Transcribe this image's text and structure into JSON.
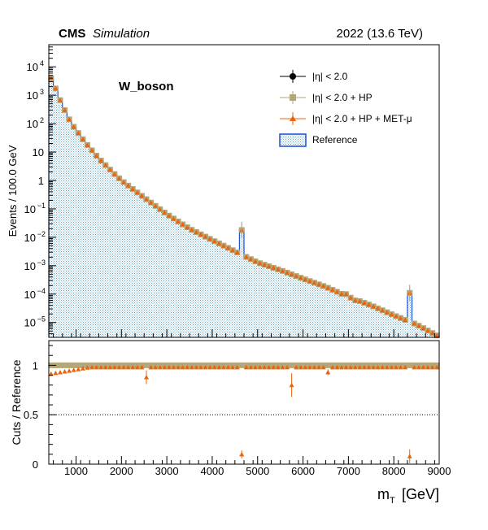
{
  "header": {
    "experiment": "CMS",
    "status": "Simulation",
    "lumi": "2022 (13.6 TeV)"
  },
  "chart_data": {
    "type": "bar",
    "process_label": "W_boson",
    "top_ylabel": "Events / 100.0 GeV",
    "ratio_ylabel": "Cuts / Reference",
    "xlabel": "m",
    "xlabel_sub": "T",
    "xlabel_unit": "[GeV]",
    "xlim": [
      400,
      9000
    ],
    "top_ylim": [
      3e-06,
      60000.0
    ],
    "top_yscale": "log",
    "ratio_ylim": [
      0,
      1.25
    ],
    "ratio_reference_lines": [
      1.0,
      0.5
    ],
    "x_ticks": [
      1000,
      2000,
      3000,
      4000,
      5000,
      6000,
      7000,
      8000,
      9000
    ],
    "x_tick_labels": [
      "1000",
      "2000",
      "3000",
      "4000",
      "5000",
      "6000",
      "7000",
      "8000",
      "9000"
    ],
    "top_y_tick_labels": [
      {
        "value": 10000,
        "base": "10",
        "exp": "4"
      },
      {
        "value": 1000,
        "base": "10",
        "exp": "3"
      },
      {
        "value": 100,
        "base": "10",
        "exp": "2"
      },
      {
        "value": 10,
        "base": "10",
        "exp": ""
      },
      {
        "value": 1,
        "base": "1",
        "exp": ""
      },
      {
        "value": 0.1,
        "base": "10",
        "exp": "−1"
      },
      {
        "value": 0.01,
        "base": "10",
        "exp": "−2"
      },
      {
        "value": 0.001,
        "base": "10",
        "exp": "−3"
      },
      {
        "value": 0.0001,
        "base": "10",
        "exp": "−4"
      },
      {
        "value": 1e-05,
        "base": "10",
        "exp": "−5"
      }
    ],
    "ratio_y_tick_labels": [
      {
        "value": 0,
        "label": "0"
      },
      {
        "value": 0.5,
        "label": "0.5"
      },
      {
        "value": 1,
        "label": "1"
      }
    ],
    "legend_position": "top-right",
    "legend": [
      {
        "label": "|η| < 2.0",
        "color": "#000000",
        "marker": "circle"
      },
      {
        "label": "|η| < 2.0 + HP",
        "color": "#b5a77a",
        "marker": "square"
      },
      {
        "label": "|η| < 2.0 + HP + MET-μ",
        "color": "#e8650e",
        "marker": "triangle"
      },
      {
        "label": "Reference",
        "color": "#1a4fd6",
        "fill": "#9ecfe6",
        "marker": "box"
      }
    ],
    "bin_width": 100,
    "reference_shape": {
      "description": "Monotonic steeply-falling spectrum, evaluated at bin centres",
      "points": [
        [
          450,
          4000
        ],
        [
          500,
          3000
        ],
        [
          600,
          1000
        ],
        [
          700,
          450
        ],
        [
          800,
          200
        ],
        [
          900,
          100
        ],
        [
          1000,
          60
        ],
        [
          1200,
          22
        ],
        [
          1500,
          6
        ],
        [
          1800,
          2
        ],
        [
          2000,
          1
        ],
        [
          2500,
          0.25
        ],
        [
          3000,
          0.065
        ],
        [
          3500,
          0.02
        ],
        [
          4000,
          0.008
        ],
        [
          4500,
          0.0032
        ],
        [
          5000,
          0.0013
        ],
        [
          5500,
          0.0007
        ],
        [
          6000,
          0.00035
        ],
        [
          6500,
          0.00018
        ],
        [
          7000,
          8e-05
        ],
        [
          7500,
          4e-05
        ],
        [
          8000,
          1.8e-05
        ],
        [
          8500,
          8.5e-06
        ],
        [
          8950,
          3.5e-06
        ]
      ]
    },
    "spikes": [
      {
        "x": 4650,
        "value": 0.018
      },
      {
        "x": 8350,
        "value": 0.00011
      }
    ],
    "bumps": [
      {
        "x": 6950,
        "value": 0.0001
      },
      {
        "x": 7150,
        "value": 6e-05
      }
    ],
    "ratio": {
      "HP": {
        "default": 1.0
      },
      "MET_mu": {
        "start_value": 0.91,
        "plateau": 0.98,
        "outliers": [
          {
            "x": 2550,
            "value": 0.88,
            "err": 0.07
          },
          {
            "x": 4650,
            "value": 0.1,
            "err": 0.04
          },
          {
            "x": 5750,
            "value": 0.8,
            "err": 0.12
          },
          {
            "x": 6550,
            "value": 0.93,
            "err": 0.03
          },
          {
            "x": 8350,
            "value": 0.08,
            "err": 0.07
          }
        ]
      },
      "eta": {
        "default": 1.0
      }
    },
    "colors": {
      "eta": "#000000",
      "hp": "#b5a77a",
      "met_mu": "#e8650e",
      "reference_line": "#1a4fd6",
      "reference_fill": "#9ecfe6"
    }
  }
}
